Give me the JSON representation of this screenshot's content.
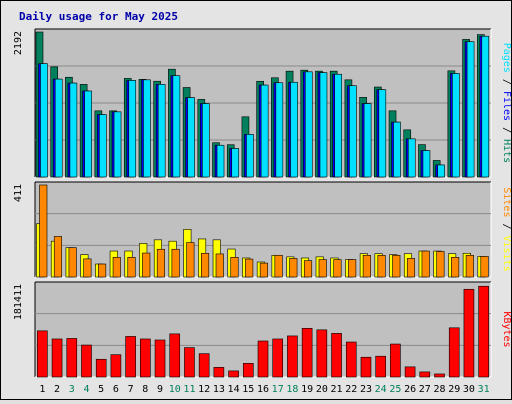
{
  "title": "Daily usage for May 2025",
  "colors": {
    "background": "#e4e4e4",
    "plot_bg": "#c0c0c0",
    "title": "#0000aa",
    "hits": "#00805c",
    "files": "#0000ff",
    "pages": "#00e0ff",
    "visits": "#ffff00",
    "sites": "#ff8800",
    "kbytes": "#ff0000",
    "weekend": "#00805c",
    "weekday": "#000000"
  },
  "chart_data": [
    {
      "type": "bar",
      "title": "Daily usage for May 2025",
      "categories": [
        "1",
        "2",
        "3",
        "4",
        "5",
        "6",
        "7",
        "8",
        "9",
        "10",
        "11",
        "12",
        "13",
        "14",
        "15",
        "16",
        "17",
        "18",
        "19",
        "20",
        "21",
        "22",
        "23",
        "24",
        "25",
        "26",
        "27",
        "28",
        "29",
        "30",
        "31"
      ],
      "weekend_days": [
        "3",
        "4",
        "10",
        "11",
        "17",
        "18",
        "24",
        "25",
        "31"
      ],
      "ylabel": "2192",
      "ylim": [
        0,
        2192
      ],
      "legend": [
        "Pages",
        "Files",
        "Hits"
      ],
      "series": [
        {
          "name": "Hits",
          "values": [
            2192,
            1665,
            1508,
            1400,
            1000,
            1000,
            1490,
            1476,
            1448,
            1630,
            1353,
            1173,
            518,
            488,
            910,
            1447,
            1500,
            1600,
            1615,
            1600,
            1600,
            1469,
            1205,
            1360,
            1000,
            713,
            490,
            250,
            1605,
            2080,
            2153
          ]
        },
        {
          "name": "Files",
          "values": [
            1713,
            1480,
            1420,
            1300,
            944,
            985,
            1460,
            1469,
            1400,
            1531,
            1200,
            1110,
            480,
            431,
            644,
            1390,
            1425,
            1432,
            1590,
            1577,
            1553,
            1380,
            1110,
            1320,
            830,
            577,
            400,
            182,
            1565,
            2045,
            2128
          ]
        },
        {
          "name": "Pages",
          "values": [
            1713,
            1480,
            1420,
            1300,
            944,
            985,
            1460,
            1469,
            1400,
            1531,
            1200,
            1110,
            480,
            431,
            644,
            1390,
            1425,
            1432,
            1590,
            1577,
            1553,
            1380,
            1110,
            1320,
            830,
            577,
            400,
            182,
            1565,
            2045,
            2128
          ]
        }
      ]
    },
    {
      "type": "bar",
      "categories": [
        "1",
        "2",
        "3",
        "4",
        "5",
        "6",
        "7",
        "8",
        "9",
        "10",
        "11",
        "12",
        "13",
        "14",
        "15",
        "16",
        "17",
        "18",
        "19",
        "20",
        "21",
        "22",
        "23",
        "24",
        "25",
        "26",
        "27",
        "28",
        "29",
        "30",
        "31"
      ],
      "ylabel": "411",
      "ylim": [
        0,
        411
      ],
      "legend": [
        "Sites",
        "Visits"
      ],
      "series": [
        {
          "name": "Visits",
          "values": [
            238,
            160,
            131,
            100,
            58,
            116,
            116,
            150,
            166,
            160,
            213,
            170,
            166,
            125,
            85,
            67,
            97,
            90,
            85,
            90,
            85,
            78,
            104,
            104,
            100,
            104,
            116,
            116,
            104,
            106,
            92
          ]
        },
        {
          "name": "Sites",
          "values": [
            411,
            181,
            131,
            81,
            58,
            88,
            88,
            107,
            124,
            124,
            154,
            106,
            103,
            88,
            80,
            62,
            97,
            83,
            73,
            78,
            78,
            78,
            97,
            97,
            97,
            83,
            116,
            114,
            88,
            97,
            92
          ]
        }
      ]
    },
    {
      "type": "bar",
      "categories": [
        "1",
        "2",
        "3",
        "4",
        "5",
        "6",
        "7",
        "8",
        "9",
        "10",
        "11",
        "12",
        "13",
        "14",
        "15",
        "16",
        "17",
        "18",
        "19",
        "20",
        "21",
        "22",
        "23",
        "24",
        "25",
        "26",
        "27",
        "28",
        "29",
        "30",
        "31"
      ],
      "ylabel": "181411",
      "ylim": [
        0,
        181411
      ],
      "legend": [
        "KBytes"
      ],
      "series": [
        {
          "name": "KBytes",
          "values": [
            91000,
            75000,
            76000,
            63000,
            35000,
            44000,
            80000,
            75000,
            73000,
            85000,
            58000,
            46000,
            19000,
            12000,
            27000,
            71000,
            75000,
            81000,
            96000,
            93000,
            86000,
            69000,
            39000,
            41000,
            65000,
            20000,
            10000,
            6000,
            97000,
            173000,
            179000
          ]
        }
      ]
    }
  ]
}
